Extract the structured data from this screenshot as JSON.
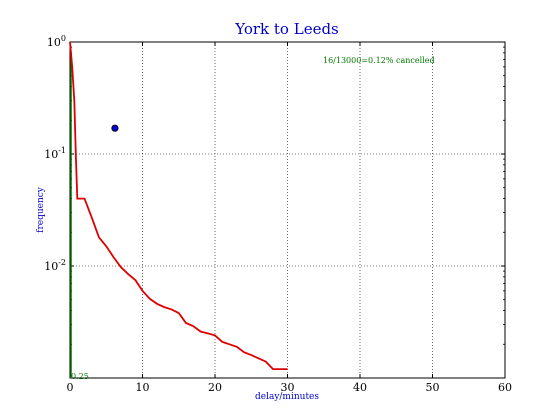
{
  "chart_data": {
    "type": "line",
    "title": "York to Leeds",
    "xlabel": "delay/minutes",
    "ylabel": "frequency",
    "xlim": [
      0,
      60
    ],
    "ylim_log10": [
      -3,
      0
    ],
    "yscale": "log",
    "grid": true,
    "x_ticks": [
      "0",
      "10",
      "20",
      "30",
      "40",
      "50",
      "60"
    ],
    "x_tick_values": [
      0,
      10,
      20,
      30,
      40,
      50,
      60
    ],
    "y_ticks": [
      {
        "base": "10",
        "exp": "0",
        "value": 1
      },
      {
        "base": "10",
        "exp": "-1",
        "value": 0.1
      },
      {
        "base": "10",
        "exp": "-2",
        "value": 0.01
      }
    ],
    "annotation": "16/13000=0.12% cancelled",
    "lower_label": "0.25",
    "colors": {
      "curve": "#dd0000",
      "vertical": "#007700",
      "marker": "#0000cc",
      "title": "#0000cc"
    },
    "series": [
      {
        "values_x": [
          0,
          0.3,
          0.6,
          0.8,
          1.0,
          2.0,
          3.0,
          4.0,
          5.0,
          6.0,
          7.0,
          8.0,
          9.0,
          10.0,
          11.0,
          12.0,
          13.0,
          14.0,
          15.0,
          16.0,
          17.0,
          18.0,
          19.0,
          20.0,
          21.0,
          22.0,
          23.0,
          24.0,
          25.0,
          26.0,
          27.0,
          28.0,
          30.0
        ],
        "values_y": [
          1.0,
          0.6,
          0.3,
          0.1,
          0.04,
          0.04,
          0.027,
          0.018,
          0.015,
          0.012,
          0.0098,
          0.0085,
          0.0075,
          0.006,
          0.0051,
          0.0046,
          0.0043,
          0.0041,
          0.0038,
          0.0031,
          0.0029,
          0.0026,
          0.0025,
          0.0024,
          0.0021,
          0.002,
          0.0019,
          0.0017,
          0.0016,
          0.0015,
          0.0014,
          0.0012,
          0.0012
        ]
      }
    ],
    "vertical_line": {
      "x": 0,
      "y_from": 0.00102,
      "y_to": 0.8
    },
    "marker_point": {
      "x": 6.2,
      "y": 0.17
    }
  }
}
